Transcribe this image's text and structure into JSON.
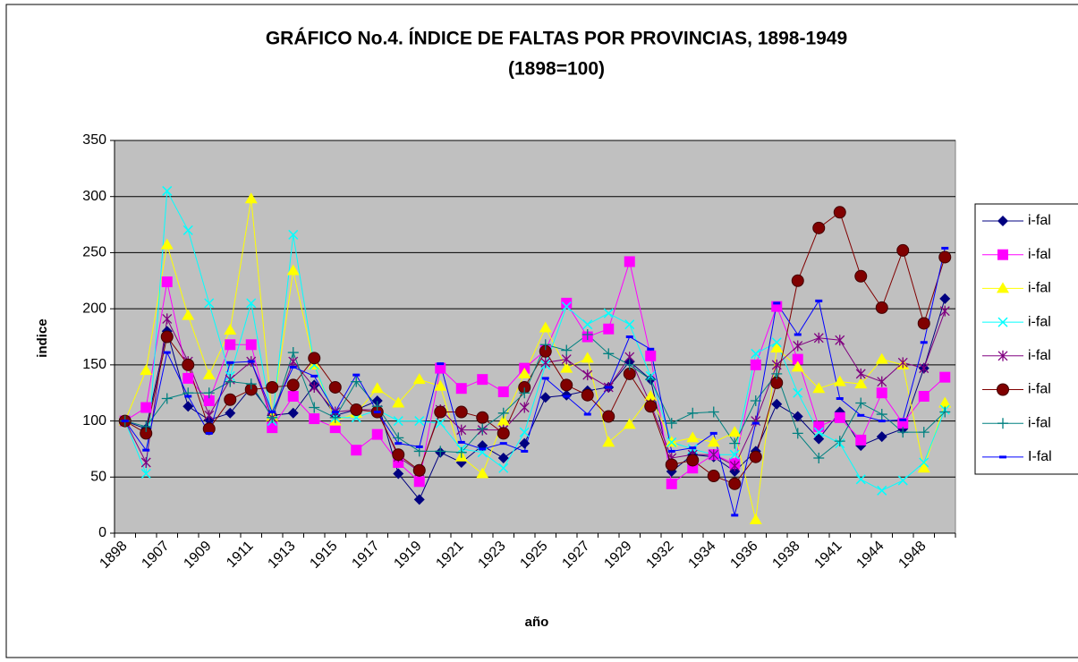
{
  "chart_data": {
    "type": "line",
    "title": "GRÁFICO No.4.  ÍNDICE DE FALTAS POR PROVINCIAS, 1898-1949",
    "subtitle": "(1898=100)",
    "x_label": "año",
    "y_label": "indice",
    "categories": [
      "1898",
      null,
      "1907",
      null,
      "1909",
      null,
      "1911",
      null,
      "1913",
      null,
      "1915",
      null,
      "1917",
      null,
      "1919",
      null,
      "1921",
      null,
      "1923",
      null,
      "1925",
      null,
      "1927",
      null,
      "1929",
      null,
      "1932",
      null,
      "1934",
      null,
      "1936",
      null,
      "1938",
      null,
      "1941",
      null,
      "1944",
      null,
      "1948",
      null
    ],
    "ylim": [
      0,
      350
    ],
    "yticks": [
      0,
      50,
      100,
      150,
      200,
      250,
      300,
      350
    ],
    "grid": true,
    "series": [
      {
        "name": "i-fal",
        "color": "#000080",
        "marker": "diamond",
        "values": [
          100,
          93,
          180,
          113,
          101,
          107,
          130,
          105,
          107,
          132,
          105,
          110,
          118,
          53,
          30,
          72,
          63,
          78,
          67,
          80,
          121,
          123,
          127,
          130,
          153,
          137,
          55,
          70,
          68,
          55,
          73,
          115,
          104,
          84,
          108,
          78,
          86,
          93,
          147,
          209
        ]
      },
      {
        "name": "i-fal",
        "color": "#ff00ff",
        "marker": "square",
        "values": [
          100,
          112,
          224,
          138,
          118,
          168,
          168,
          94,
          122,
          102,
          94,
          74,
          88,
          63,
          46,
          147,
          129,
          137,
          126,
          147,
          163,
          205,
          175,
          182,
          242,
          158,
          44,
          58,
          70,
          62,
          150,
          202,
          155,
          95,
          103,
          83,
          125,
          98,
          122,
          139
        ]
      },
      {
        "name": "i-fal",
        "color": "#ffff00",
        "marker": "triangle",
        "values": [
          100,
          145,
          257,
          194,
          141,
          181,
          298,
          104,
          234,
          150,
          100,
          107,
          129,
          116,
          137,
          131,
          68,
          53,
          100,
          142,
          183,
          147,
          156,
          81,
          97,
          122,
          81,
          85,
          81,
          90,
          12,
          165,
          148,
          129,
          135,
          133,
          155,
          150,
          58,
          116
        ]
      },
      {
        "name": "i-fal",
        "color": "#00ffff",
        "marker": "x",
        "values": [
          100,
          53,
          305,
          270,
          205,
          140,
          205,
          100,
          266,
          150,
          103,
          103,
          110,
          100,
          100,
          98,
          75,
          72,
          58,
          90,
          150,
          202,
          186,
          196,
          186,
          140,
          81,
          75,
          70,
          70,
          160,
          170,
          125,
          90,
          80,
          48,
          38,
          47,
          63,
          110
        ]
      },
      {
        "name": "i-fal",
        "color": "#800080",
        "marker": "star",
        "values": [
          100,
          63,
          191,
          153,
          105,
          137,
          153,
          103,
          153,
          130,
          108,
          110,
          110,
          68,
          55,
          110,
          92,
          92,
          92,
          112,
          152,
          155,
          141,
          130,
          157,
          115,
          67,
          70,
          70,
          60,
          100,
          150,
          167,
          174,
          172,
          142,
          135,
          152,
          147,
          198
        ]
      },
      {
        "name": "i-fal",
        "color": "#800000",
        "marker": "circle",
        "values": [
          100,
          89,
          175,
          150,
          93,
          119,
          128,
          130,
          132,
          156,
          130,
          110,
          108,
          70,
          56,
          108,
          108,
          103,
          89,
          130,
          162,
          132,
          123,
          104,
          142,
          113,
          61,
          65,
          51,
          44,
          68,
          134,
          225,
          272,
          286,
          229,
          201,
          252,
          187,
          246
        ]
      },
      {
        "name": "i-fal",
        "color": "#008080",
        "marker": "plus",
        "values": [
          100,
          95,
          120,
          125,
          125,
          135,
          133,
          103,
          161,
          112,
          103,
          135,
          113,
          85,
          73,
          73,
          72,
          93,
          107,
          125,
          168,
          163,
          177,
          160,
          150,
          137,
          98,
          107,
          108,
          80,
          118,
          142,
          89,
          67,
          82,
          116,
          106,
          90,
          90,
          108
        ]
      },
      {
        "name": "I-fal",
        "color": "#0000ff",
        "marker": "dash",
        "values": [
          100,
          74,
          161,
          122,
          89,
          152,
          153,
          108,
          148,
          140,
          108,
          141,
          108,
          80,
          77,
          151,
          81,
          75,
          80,
          73,
          138,
          122,
          106,
          130,
          175,
          164,
          73,
          76,
          89,
          16,
          98,
          205,
          177,
          207,
          120,
          105,
          100,
          101,
          170,
          254
        ]
      }
    ]
  }
}
